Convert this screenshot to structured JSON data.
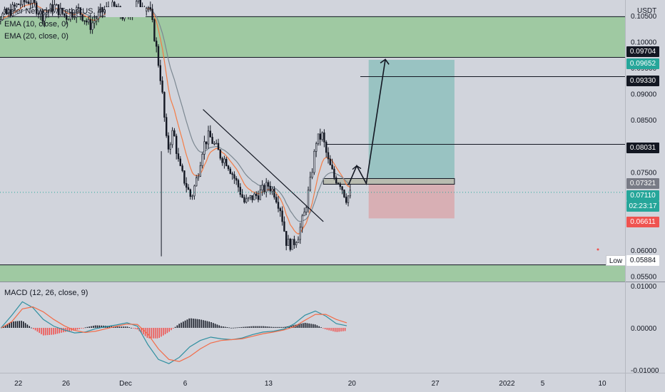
{
  "legend": {
    "symbol": "Celer Network / TetherUS, 4h, BINANCE",
    "ema10": "EMA (10, close, 0)",
    "ema20": "EMA (20, close, 0)",
    "macd": "MACD (12, 26, close, 9)"
  },
  "currency": "USDT",
  "price_labels": {
    "zone_top": "0.09704",
    "target": "0.09652",
    "level_1": "0.09330",
    "level_2": "0.08031",
    "entry": "0.07321",
    "last_price": "0.07110",
    "countdown": "02:23:17",
    "stop": "0.06611",
    "low_tag": "Low",
    "low_value": "0.05884"
  },
  "colors": {
    "background": "#d1d4dc",
    "up": "#26a69a",
    "down": "#ef5350",
    "ema10": "#f57c45",
    "ema20": "#7b8791",
    "zone": "#9fc9a2",
    "target_box": "#8fbfbd",
    "stop_box": "#d9a8ad",
    "macd_line": "#2f8fa0",
    "signal_line": "#f36b47"
  },
  "chart_data": [
    {
      "type": "candlestick",
      "title": "Celer Network / TetherUS, 4h, BINANCE",
      "indicators": [
        "EMA (10, close, 0)",
        "EMA (20, close, 0)"
      ],
      "y_unit": "USDT",
      "ylim": [
        0.054,
        0.108
      ],
      "y_ticks": [
        "0.10500",
        "0.10000",
        "0.09500",
        "0.09000",
        "0.08500",
        "0.07500",
        "0.06000",
        "0.05500"
      ],
      "x_tick_labels": [
        "22",
        "26",
        "Dec",
        "6",
        "13",
        "20",
        "27",
        "2022",
        "5",
        "10"
      ],
      "price_path": [
        {
          "date": "Nov 19",
          "price": 0.104
        },
        {
          "date": "Nov 21",
          "price": 0.1052
        },
        {
          "date": "Nov 22",
          "price": 0.1072
        },
        {
          "date": "Nov 23",
          "price": 0.108
        },
        {
          "date": "Nov 24",
          "price": 0.105
        },
        {
          "date": "Nov 25",
          "price": 0.1068
        },
        {
          "date": "Nov 26",
          "price": 0.1048
        },
        {
          "date": "Nov 27",
          "price": 0.1062
        },
        {
          "date": "Nov 28",
          "price": 0.103
        },
        {
          "date": "Nov 29",
          "price": 0.1058
        },
        {
          "date": "Nov 30",
          "price": 0.1066
        },
        {
          "date": "Dec 1",
          "price": 0.1044
        },
        {
          "date": "Dec 2",
          "price": 0.1075
        },
        {
          "date": "Dec 3",
          "price": 0.1065
        },
        {
          "date": "Dec 3.5",
          "price": 0.1
        },
        {
          "date": "Dec 4",
          "price": 0.092
        },
        {
          "date": "Dec 4.5",
          "price": 0.079
        },
        {
          "date": "Dec 5",
          "price": 0.083
        },
        {
          "date": "Dec 5.5",
          "price": 0.076
        },
        {
          "date": "Dec 6",
          "price": 0.073
        },
        {
          "date": "Dec 6.5",
          "price": 0.07
        },
        {
          "date": "Dec 7",
          "price": 0.074
        },
        {
          "date": "Dec 7.5",
          "price": 0.08
        },
        {
          "date": "Dec 8",
          "price": 0.082
        },
        {
          "date": "Dec 8.5",
          "price": 0.08
        },
        {
          "date": "Dec 9",
          "price": 0.078
        },
        {
          "date": "Dec 9.5",
          "price": 0.077
        },
        {
          "date": "Dec 10",
          "price": 0.0745
        },
        {
          "date": "Dec 10.5",
          "price": 0.072
        },
        {
          "date": "Dec 11",
          "price": 0.069
        },
        {
          "date": "Dec 11.5",
          "price": 0.07
        },
        {
          "date": "Dec 12",
          "price": 0.0705
        },
        {
          "date": "Dec 12.5",
          "price": 0.0715
        },
        {
          "date": "Dec 13",
          "price": 0.0725
        },
        {
          "date": "Dec 13.5",
          "price": 0.071
        },
        {
          "date": "Dec 14",
          "price": 0.068
        },
        {
          "date": "Dec 14.5",
          "price": 0.0615
        },
        {
          "date": "Dec 15",
          "price": 0.061
        },
        {
          "date": "Dec 15.5",
          "price": 0.063
        },
        {
          "date": "Dec 16",
          "price": 0.067
        },
        {
          "date": "Dec 16.5",
          "price": 0.073
        },
        {
          "date": "Dec 17",
          "price": 0.081
        },
        {
          "date": "Dec 17.5",
          "price": 0.082
        },
        {
          "date": "Dec 18",
          "price": 0.077
        },
        {
          "date": "Dec 18.5",
          "price": 0.074
        },
        {
          "date": "Dec 19",
          "price": 0.073
        },
        {
          "date": "Dec 19.5",
          "price": 0.07
        },
        {
          "date": "Dec 20",
          "price": 0.0711
        }
      ],
      "annotations": {
        "resistance_zone": [
          0.097,
          0.1048
        ],
        "support_zone": [
          0.054,
          0.0565
        ],
        "target": 0.09652,
        "entry": 0.07321,
        "stop": 0.06611,
        "horizontal_levels": [
          0.0933,
          0.08031
        ],
        "low": 0.05884
      }
    },
    {
      "type": "line",
      "title": "MACD (12, 26, close, 9)",
      "ylim": [
        -0.0105,
        0.0105
      ],
      "y_ticks": [
        "0.01000",
        "0.00000",
        "-0.01000"
      ],
      "series": [
        {
          "name": "MACD",
          "values": [
            0.0001,
            0.003,
            0.0062,
            0.0048,
            0.002,
            0.0004,
            -0.0005,
            -0.0012,
            -0.001,
            -0.0002,
            0.0003,
            0.0007,
            0.0012,
            0.0004,
            -0.004,
            -0.0075,
            -0.0085,
            -0.007,
            -0.0045,
            -0.003,
            -0.0022,
            -0.0026,
            -0.0028,
            -0.0024,
            -0.0016,
            -0.001,
            -0.0008,
            -0.0003,
            0.001,
            0.003,
            0.004,
            0.0028,
            0.001,
            0.0005
          ]
        },
        {
          "name": "Signal",
          "values": [
            0.0,
            0.0015,
            0.0045,
            0.005,
            0.0038,
            0.002,
            0.0005,
            -0.0006,
            -0.0011,
            -0.0008,
            -0.0002,
            0.0004,
            0.0009,
            0.0008,
            -0.0015,
            -0.005,
            -0.0075,
            -0.008,
            -0.0068,
            -0.005,
            -0.0036,
            -0.003,
            -0.0028,
            -0.0026,
            -0.002,
            -0.0014,
            -0.001,
            -0.0005,
            0.0003,
            0.0018,
            0.0032,
            0.0032,
            0.002,
            0.0012
          ]
        }
      ]
    }
  ]
}
